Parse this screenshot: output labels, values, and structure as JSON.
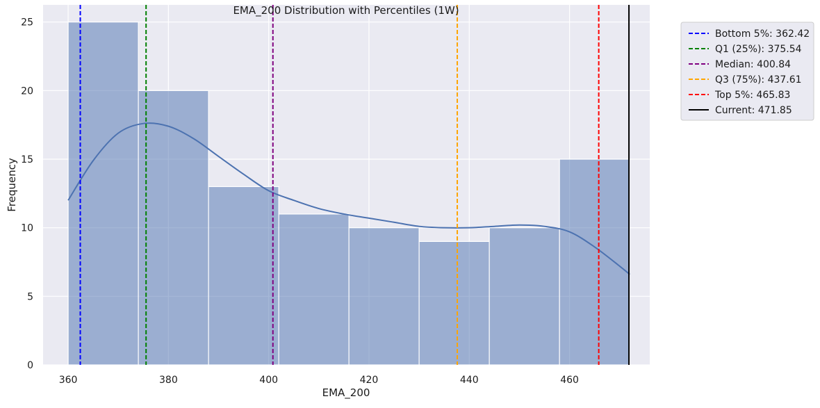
{
  "chart_data": {
    "type": "bar",
    "title": "EMA_200 Distribution with Percentiles (1W)",
    "xlabel": "EMA_200",
    "ylabel": "Frequency",
    "xlim": [
      355.0,
      476.0
    ],
    "ylim": [
      0,
      26.25
    ],
    "xticks": [
      360,
      380,
      400,
      420,
      440,
      460
    ],
    "yticks": [
      0,
      5,
      10,
      15,
      20,
      25
    ],
    "grid": true,
    "legend_position": "outside-top-right",
    "bar_color": "#4c72b0",
    "bins": [
      {
        "x0": 360.0,
        "x1": 374.0,
        "count": 25
      },
      {
        "x0": 374.0,
        "x1": 388.0,
        "count": 20
      },
      {
        "x0": 388.0,
        "x1": 402.0,
        "count": 13
      },
      {
        "x0": 402.0,
        "x1": 416.0,
        "count": 11
      },
      {
        "x0": 416.0,
        "x1": 430.0,
        "count": 10
      },
      {
        "x0": 430.0,
        "x1": 444.0,
        "count": 9
      },
      {
        "x0": 444.0,
        "x1": 458.0,
        "count": 10
      },
      {
        "x0": 458.0,
        "x1": 472.0,
        "count": 15
      }
    ],
    "kde": {
      "x": [
        360,
        365,
        370,
        375,
        380,
        385,
        390,
        395,
        400,
        405,
        410,
        415,
        420,
        425,
        430,
        435,
        440,
        445,
        450,
        455,
        460,
        465,
        470,
        472
      ],
      "y": [
        12.0,
        14.9,
        16.9,
        17.6,
        17.4,
        16.5,
        15.2,
        13.9,
        12.7,
        12.0,
        11.4,
        11.0,
        10.7,
        10.4,
        10.1,
        10.0,
        10.0,
        10.1,
        10.2,
        10.1,
        9.7,
        8.6,
        7.2,
        6.6
      ]
    },
    "reference_lines": [
      {
        "label": "Bottom 5%: 362.42",
        "value": 362.42,
        "color": "#0000ff",
        "style": "dashed"
      },
      {
        "label": "Q1 (25%): 375.54",
        "value": 375.54,
        "color": "#008000",
        "style": "dashed"
      },
      {
        "label": "Median: 400.84",
        "value": 400.84,
        "color": "#800080",
        "style": "dashed"
      },
      {
        "label": "Q3 (75%): 437.61",
        "value": 437.61,
        "color": "#ffa500",
        "style": "dashed"
      },
      {
        "label": "Top 5%: 465.83",
        "value": 465.83,
        "color": "#ff0000",
        "style": "dashed"
      },
      {
        "label": "Current: 471.85",
        "value": 471.85,
        "color": "#000000",
        "style": "solid"
      }
    ]
  }
}
